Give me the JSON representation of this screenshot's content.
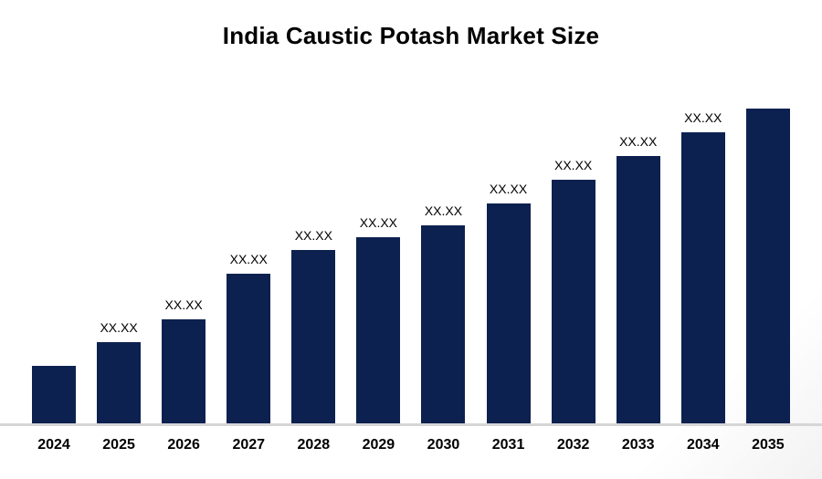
{
  "title": "India Caustic Potash Market Size",
  "chart_data": {
    "type": "bar",
    "title": "India Caustic Potash Market Size",
    "categories": [
      "2024",
      "2025",
      "2026",
      "2027",
      "2028",
      "2029",
      "2030",
      "2031",
      "2032",
      "2033",
      "2034",
      "2035"
    ],
    "values": [
      63,
      89,
      114,
      164,
      190,
      204,
      217,
      241,
      267,
      293,
      319,
      345
    ],
    "value_unit": "relative-pixel-height",
    "bar_labels": [
      "",
      "XX.XX",
      "XX.XX",
      "XX.XX",
      "XX.XX",
      "XX.XX",
      "XX.XX",
      "XX.XX",
      "XX.XX",
      "XX.XX",
      "XX.XX",
      ""
    ],
    "xlabel": "",
    "ylabel": "",
    "grid": false,
    "legend": false,
    "bar_color": "#0d2150",
    "value_label_color": "#000000",
    "axis_line_color": "#d6d6d6",
    "background_color": "#ffffff"
  }
}
